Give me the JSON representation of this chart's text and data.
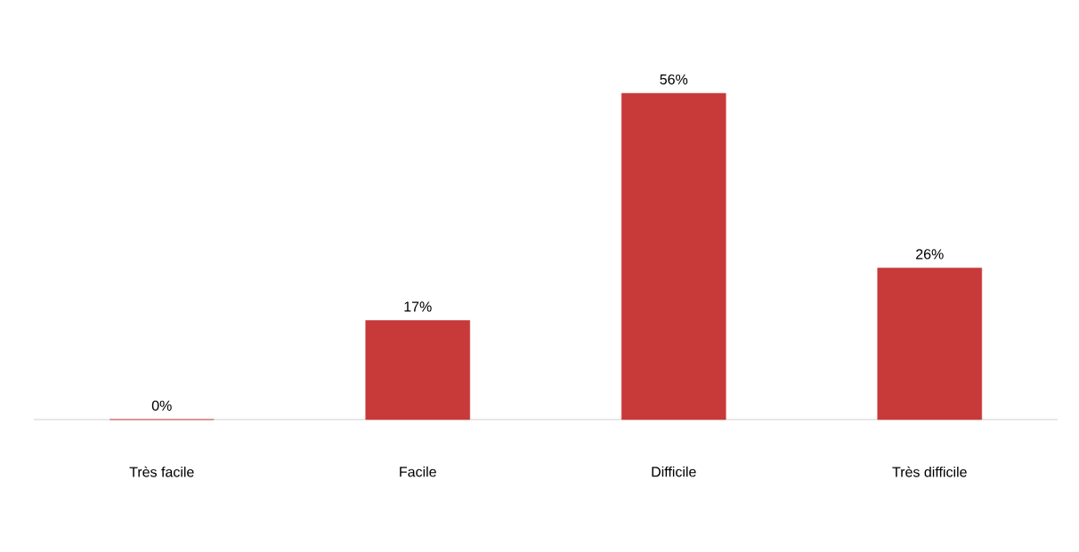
{
  "chart_data": {
    "type": "bar",
    "categories": [
      "Très facile",
      "Facile",
      "Difficile",
      "Très difficile"
    ],
    "values": [
      0,
      17,
      56,
      26
    ],
    "value_labels": [
      "0%",
      "17%",
      "56%",
      "26%"
    ],
    "color": "#c8393a",
    "grid": false
  }
}
